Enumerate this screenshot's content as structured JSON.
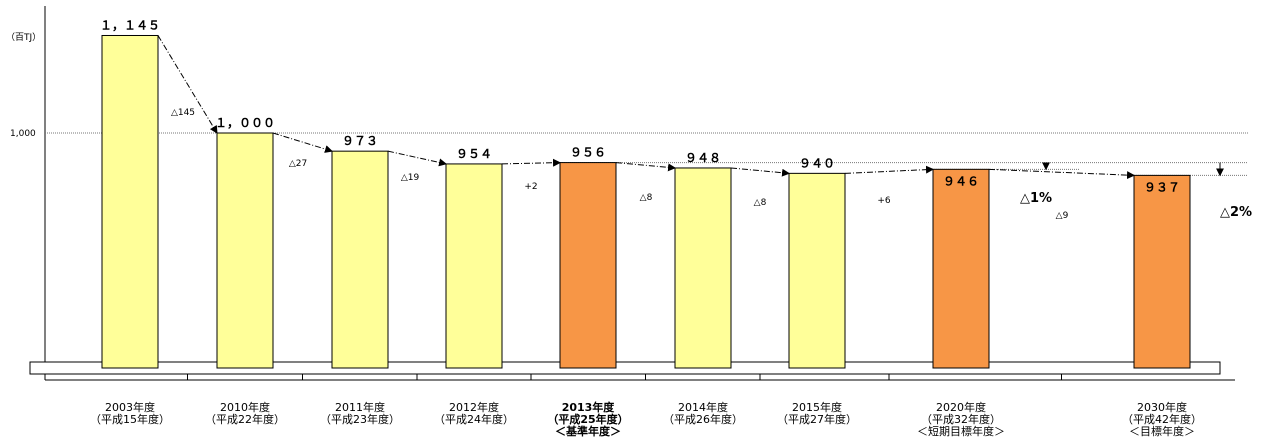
{
  "chart_data": {
    "type": "bar",
    "unit_label": "（百TJ）",
    "y_ticks": [
      {
        "value": 1000,
        "label": "1,000"
      }
    ],
    "categories": [
      {
        "lines": [
          "2003年度",
          "（平成15年度）"
        ],
        "bold": false
      },
      {
        "lines": [
          "2010年度",
          "（平成22年度）"
        ],
        "bold": false
      },
      {
        "lines": [
          "2011年度",
          "（平成23年度）"
        ],
        "bold": false
      },
      {
        "lines": [
          "2012年度",
          "（平成24年度）"
        ],
        "bold": false
      },
      {
        "lines": [
          "2013年度",
          "（平成25年度）",
          "＜基準年度＞"
        ],
        "bold": true
      },
      {
        "lines": [
          "2014年度",
          "（平成26年度）"
        ],
        "bold": false
      },
      {
        "lines": [
          "2015年度",
          "（平成27年度）"
        ],
        "bold": false
      },
      {
        "lines": [
          "2020年度",
          "（平成32年度）",
          "＜短期目標年度＞"
        ],
        "bold": false
      },
      {
        "lines": [
          "2030年度",
          "（平成42年度）",
          "＜目標年度＞"
        ],
        "bold": false
      }
    ],
    "values": [
      1145,
      1000,
      973,
      954,
      956,
      948,
      940,
      946,
      937
    ],
    "value_labels": [
      "１，１４５",
      "１，０００",
      "９７３",
      "９５４",
      "９５６",
      "９４８",
      "９４０",
      "９４６",
      "９３７"
    ],
    "bar_colors": [
      "#ffff99",
      "#ffff99",
      "#ffff99",
      "#ffff99",
      "#f79646",
      "#ffff99",
      "#ffff99",
      "#f79646",
      "#f79646"
    ],
    "changes": [
      "△145",
      "△27",
      "△19",
      "+2",
      "△8",
      "△8",
      "+6",
      "△9"
    ],
    "reduction_labels": [
      "△1%",
      "△2%"
    ],
    "grid": false,
    "legend": "none"
  }
}
